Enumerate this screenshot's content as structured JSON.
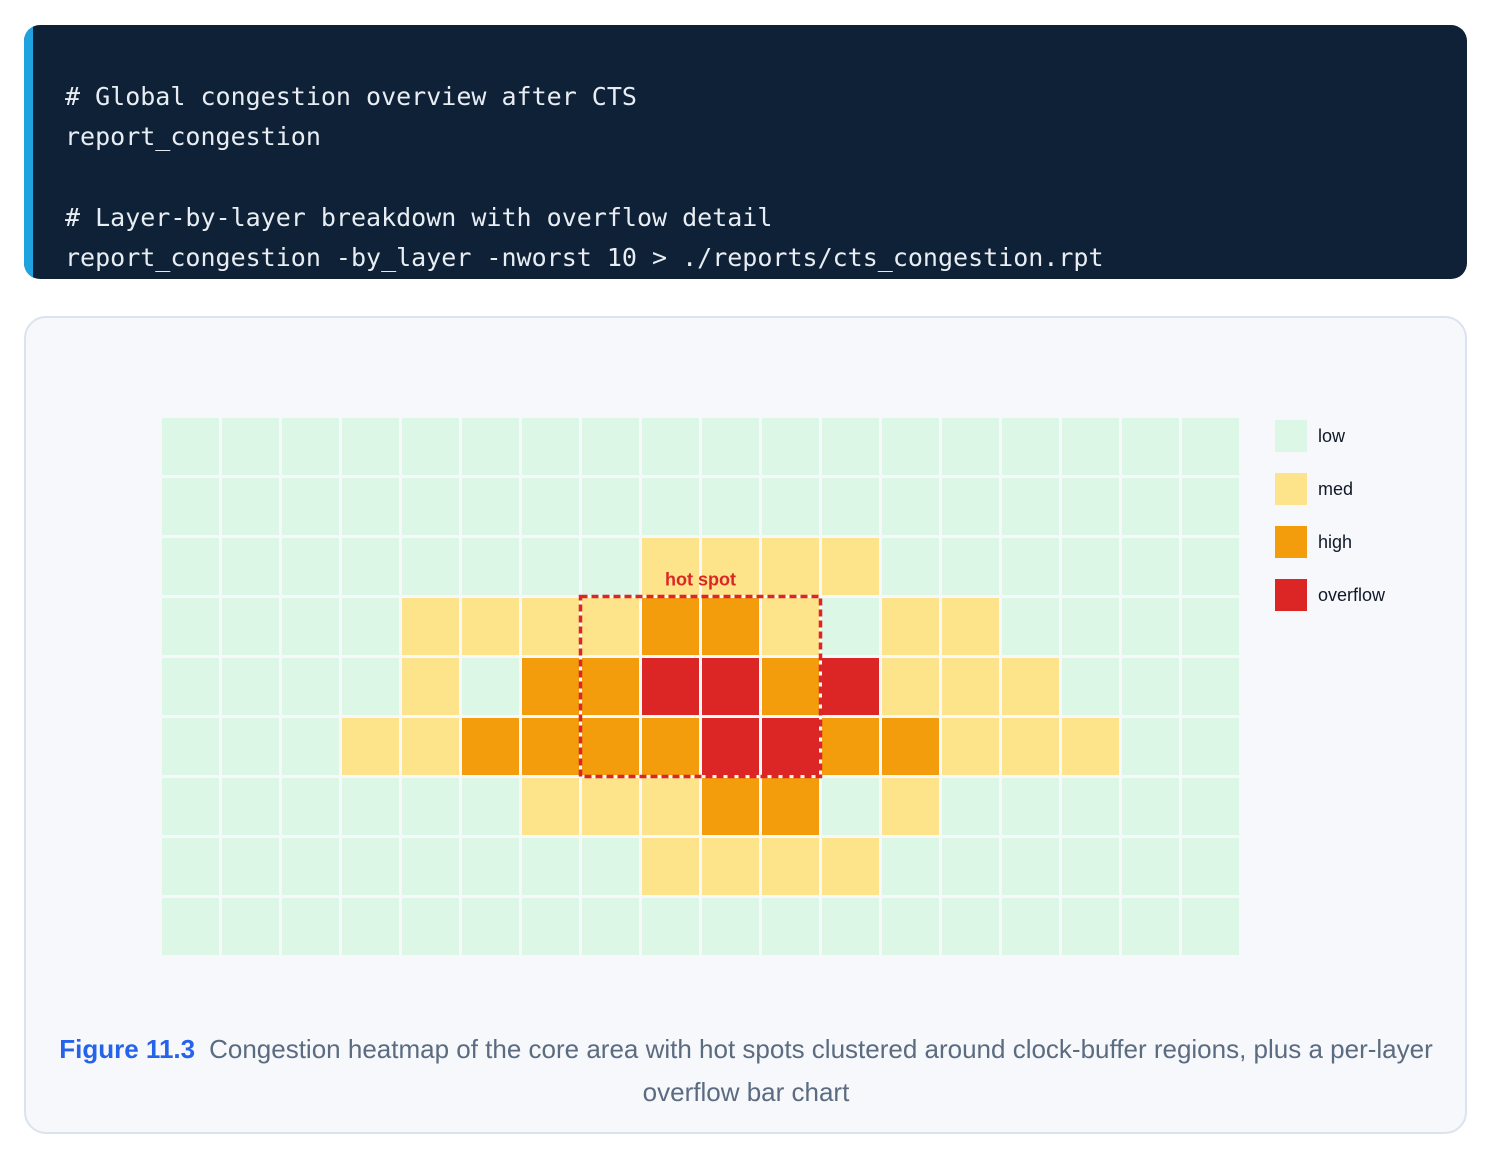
{
  "code": {
    "lines": [
      "# Global congestion overview after CTS",
      "report_congestion",
      "",
      "# Layer-by-layer breakdown with overflow detail",
      "report_congestion -by_layer -nworst 10 > ./reports/cts_congestion.rpt"
    ]
  },
  "chart_data": {
    "type": "heatmap",
    "rows": 9,
    "cols": 18,
    "levels": [
      "low",
      "med",
      "high",
      "overflow"
    ],
    "level_colors": {
      "low": "#dcf7e6",
      "med": "#fde38a",
      "high": "#f39c0c",
      "overflow": "#dc2626"
    },
    "cells": [
      [
        0,
        0,
        0,
        0,
        0,
        0,
        0,
        0,
        0,
        0,
        0,
        0,
        0,
        0,
        0,
        0,
        0,
        0
      ],
      [
        0,
        0,
        0,
        0,
        0,
        0,
        0,
        0,
        0,
        0,
        0,
        0,
        0,
        0,
        0,
        0,
        0,
        0
      ],
      [
        0,
        0,
        0,
        0,
        0,
        0,
        0,
        0,
        1,
        1,
        1,
        1,
        0,
        0,
        0,
        0,
        0,
        0
      ],
      [
        0,
        0,
        0,
        0,
        1,
        1,
        1,
        1,
        2,
        2,
        1,
        0,
        1,
        1,
        0,
        0,
        0,
        0
      ],
      [
        0,
        0,
        0,
        0,
        1,
        0,
        2,
        2,
        3,
        3,
        2,
        3,
        1,
        1,
        1,
        0,
        0,
        0
      ],
      [
        0,
        0,
        0,
        1,
        1,
        2,
        2,
        2,
        2,
        3,
        3,
        2,
        2,
        1,
        1,
        1,
        0,
        0
      ],
      [
        0,
        0,
        0,
        0,
        0,
        0,
        1,
        1,
        1,
        2,
        2,
        0,
        1,
        0,
        0,
        0,
        0,
        0
      ],
      [
        0,
        0,
        0,
        0,
        0,
        0,
        0,
        0,
        1,
        1,
        1,
        1,
        0,
        0,
        0,
        0,
        0,
        0
      ],
      [
        0,
        0,
        0,
        0,
        0,
        0,
        0,
        0,
        0,
        0,
        0,
        0,
        0,
        0,
        0,
        0,
        0,
        0
      ]
    ],
    "annotation": {
      "label": "hot spot",
      "row_start": 3,
      "row_end": 5,
      "col_start": 7,
      "col_end": 10,
      "color": "#dc2626"
    },
    "legend_position": "right",
    "grid": true
  },
  "caption": {
    "label": "Figure 11.3",
    "text": "Congestion heatmap of the core area with hot spots clustered around clock-buffer regions, plus a per-layer overflow bar chart"
  }
}
